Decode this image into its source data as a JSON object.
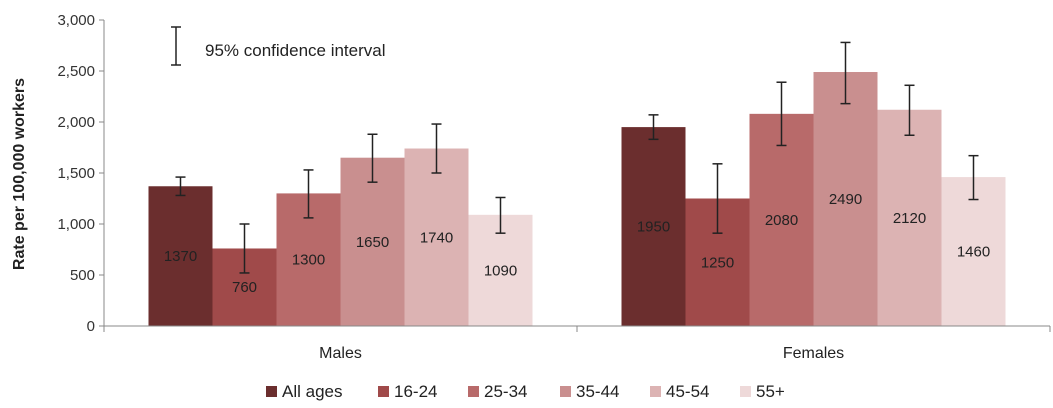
{
  "chart_data": {
    "type": "bar",
    "title": "",
    "xlabel": "",
    "ylabel": "Rate per 100,000 workers",
    "ylim": [
      0,
      3000
    ],
    "yticks": [
      0,
      500,
      1000,
      1500,
      2000,
      2500,
      3000
    ],
    "ytick_labels": [
      "0",
      "500",
      "1,000",
      "1,500",
      "2,000",
      "2,500",
      "3,000"
    ],
    "categories": [
      "Males",
      "Females"
    ],
    "series": [
      {
        "name": "All ages",
        "color": "#6b2e2e",
        "values": [
          1370,
          1950
        ],
        "ci_low": [
          1280,
          1830
        ],
        "ci_high": [
          1460,
          2070
        ]
      },
      {
        "name": "16-24",
        "color": "#a04a4a",
        "values": [
          760,
          1250
        ],
        "ci_low": [
          520,
          910
        ],
        "ci_high": [
          1000,
          1590
        ]
      },
      {
        "name": "25-34",
        "color": "#b86a6a",
        "values": [
          1300,
          2080
        ],
        "ci_low": [
          1060,
          1770
        ],
        "ci_high": [
          1530,
          2390
        ]
      },
      {
        "name": "35-44",
        "color": "#c98f8f",
        "values": [
          1650,
          2490
        ],
        "ci_low": [
          1410,
          2180
        ],
        "ci_high": [
          1880,
          2780
        ]
      },
      {
        "name": "45-54",
        "color": "#dcb3b3",
        "values": [
          1740,
          2120
        ],
        "ci_low": [
          1500,
          1870
        ],
        "ci_high": [
          1980,
          2360
        ]
      },
      {
        "name": "55+",
        "color": "#eed9d9",
        "values": [
          1090,
          1460
        ],
        "ci_low": [
          910,
          1240
        ],
        "ci_high": [
          1260,
          1670
        ]
      }
    ],
    "annotation": "95% confidence interval",
    "legend_position": "bottom",
    "grid": false
  }
}
